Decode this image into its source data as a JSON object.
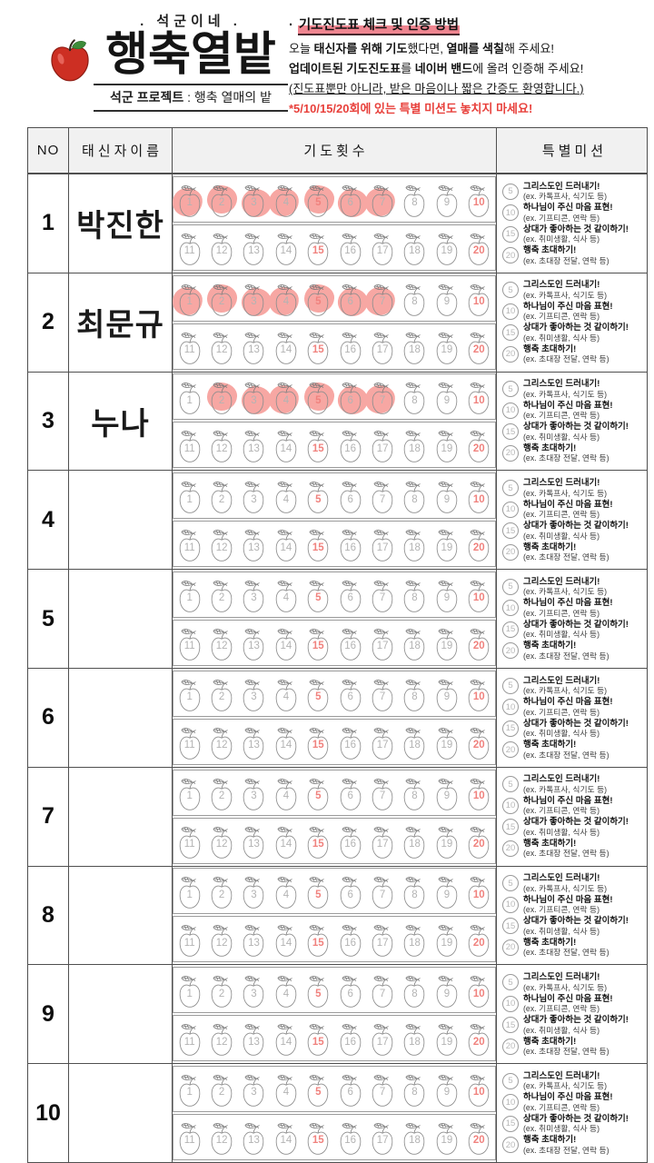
{
  "logo": {
    "tagline": ". 석군이네 .",
    "title": "행축열밭",
    "subtitle": [
      {
        "t": "석군 프로젝트",
        "b": true
      },
      {
        "t": " : 행축 열매의 밭",
        "b": false
      }
    ]
  },
  "instructions": {
    "bullet": "·",
    "title": "기도진도표 체크 및 인증 방법",
    "lines": [
      {
        "style": "normal",
        "parts": [
          {
            "t": "오늘 ",
            "b": false
          },
          {
            "t": "태신자를 위해 기도",
            "b": true
          },
          {
            "t": "했다면, ",
            "b": false
          },
          {
            "t": "열매를 색칠",
            "b": true
          },
          {
            "t": "해 주세요!",
            "b": false
          }
        ]
      },
      {
        "style": "normal",
        "parts": [
          {
            "t": "업데이트된 기도진도표",
            "b": true
          },
          {
            "t": "를 ",
            "b": false
          },
          {
            "t": "네이버 밴드",
            "b": true
          },
          {
            "t": "에 올려 인증해 주세요!",
            "b": false
          }
        ]
      },
      {
        "style": "underline",
        "parts": [
          {
            "t": "(진도표뿐만 아니라, 받은 마음이나 짧은 간증도 환영합니다.)",
            "b": false
          }
        ]
      },
      {
        "style": "red",
        "parts": [
          {
            "t": "*5/10/15/20회에 있는 특별 미션도 놓치지 마세요!",
            "b": true
          }
        ]
      }
    ]
  },
  "table": {
    "headers": {
      "no": "NO",
      "name": "태신자이름",
      "count": "기도횟수",
      "mission": "특별미션"
    },
    "apple_labels": [
      "1",
      "2",
      "3",
      "4",
      "5",
      "6",
      "7",
      "8",
      "9",
      "10",
      "11",
      "12",
      "13",
      "14",
      "15",
      "16",
      "17",
      "18",
      "19",
      "20"
    ],
    "special_numbers": [
      5,
      10,
      15,
      20
    ],
    "rows": [
      {
        "no": "1",
        "name": "박진한",
        "colored": [
          1,
          2,
          3,
          4,
          5,
          6,
          7
        ]
      },
      {
        "no": "2",
        "name": "최문규",
        "colored": [
          1,
          2,
          3,
          4,
          5,
          6,
          7
        ]
      },
      {
        "no": "3",
        "name": "누나",
        "colored": [
          2,
          3,
          4,
          5,
          6,
          7
        ]
      },
      {
        "no": "4",
        "name": "",
        "colored": []
      },
      {
        "no": "5",
        "name": "",
        "colored": []
      },
      {
        "no": "6",
        "name": "",
        "colored": []
      },
      {
        "no": "7",
        "name": "",
        "colored": []
      },
      {
        "no": "8",
        "name": "",
        "colored": []
      },
      {
        "no": "9",
        "name": "",
        "colored": []
      },
      {
        "no": "10",
        "name": "",
        "colored": []
      }
    ]
  },
  "missions": [
    {
      "num": "5",
      "title": "그리스도인 드러내기!",
      "example": "(ex. 카톡프사, 식기도 등)"
    },
    {
      "num": "10",
      "title": "하나님이 주신 마음 표현!",
      "example": "(ex. 기프티콘, 연락 등)"
    },
    {
      "num": "15",
      "title": "상대가 좋아하는 것 같이하기!",
      "example": "(ex. 취미생활, 식사 등)"
    },
    {
      "num": "20",
      "title": "행축 초대하기!",
      "example": "(ex. 초대장 전달, 연락 등)"
    }
  ],
  "colors": {
    "title_highlight_pink": "#ef8590",
    "apple_fill_pink": "#f7a7a3",
    "special_number_pink": "#f0827e",
    "normal_number_gray": "#b3b3b3",
    "alert_red": "#e8403b",
    "logo_apple_red": "#cd2f23",
    "logo_leaf_green": "#3e8c3a"
  }
}
